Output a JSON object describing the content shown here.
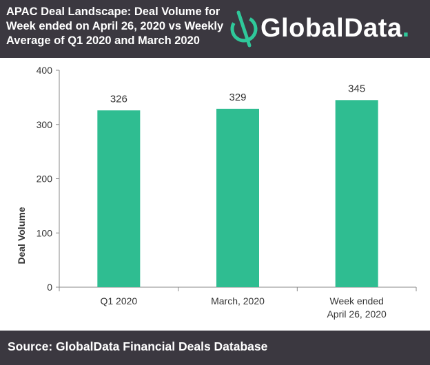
{
  "header": {
    "title_lines": [
      "APAC Deal Landscape: Deal Volume for",
      "Week ended on April 26, 2020 vs Weekly",
      "Average of Q1 2020 and March 2020"
    ],
    "logo_text": "GlobalData",
    "logo_dot": "."
  },
  "colors": {
    "header_bg": "#3b3840",
    "bar": "#2fbd91",
    "brand_accent": "#2fc89a"
  },
  "chart_data": {
    "type": "bar",
    "title": "APAC Deal Landscape: Deal Volume for Week ended on April 26, 2020 vs Weekly Average of Q1 2020 and March 2020",
    "categories": [
      "Q1 2020",
      "March, 2020",
      "Week ended April 26, 2020"
    ],
    "category_lines": [
      [
        "Q1 2020"
      ],
      [
        "March, 2020"
      ],
      [
        "Week ended",
        "April 26, 2020"
      ]
    ],
    "values": [
      326,
      329,
      345
    ],
    "data_labels": [
      "326",
      "329",
      "345"
    ],
    "xlabel": "",
    "ylabel": "Deal Volume",
    "ylim": [
      0,
      400
    ],
    "yticks": [
      0,
      100,
      200,
      300,
      400
    ],
    "ytick_labels": [
      "0",
      "100",
      "200",
      "300",
      "400"
    ],
    "grid": false,
    "legend": "none"
  },
  "footer": {
    "source": "Source: GlobalData Financial Deals Database"
  }
}
